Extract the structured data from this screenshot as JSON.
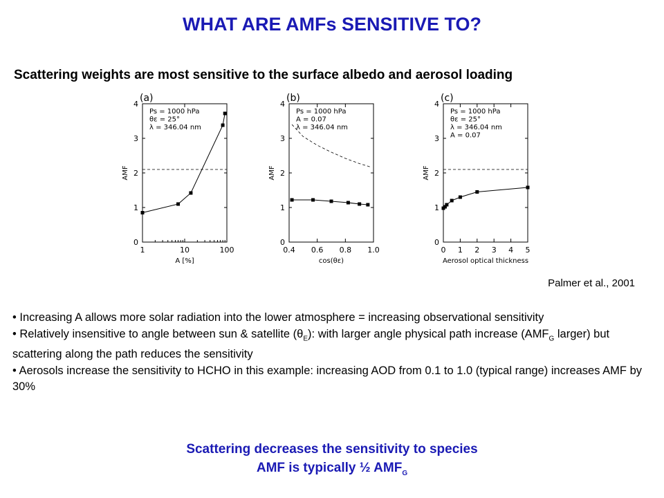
{
  "slide": {
    "title": "WHAT ARE AMFs SENSITIVE TO?",
    "subtitle": "Scattering weights are most sensitive to the surface albedo and aerosol loading",
    "citation": "Palmer et al., 2001",
    "bullets": [
      {
        "parts": [
          "• Increasing A allows more solar radiation into the lower atmosphere = increasing observational sensitivity"
        ]
      },
      {
        "parts": [
          "• Relatively insensitive to angle between sun & satellite (",
          "θ",
          "E",
          "): with larger angle physical path increase (AMF",
          "G",
          " larger) but scattering along the path reduces the sensitivity"
        ]
      },
      {
        "parts": [
          "• Aerosols increase the sensitivity to HCHO in this example: increasing AOD from 0.1 to 1.0 (typical range) increases AMF by 30%"
        ]
      }
    ],
    "conclusion": {
      "line1": "Scattering decreases the sensitivity to species",
      "line2_prefix": "AMF is typically ½ AMF",
      "line2_sub": "G"
    }
  },
  "chart_data": [
    {
      "type": "line",
      "panel_label": "(a)",
      "params": [
        "Ps = 1000 hPa",
        "θε = 25°",
        "λ = 346.04 nm"
      ],
      "xlabel": "A [%]",
      "ylabel": "AMF",
      "xscale": "log",
      "xlim": [
        1,
        100
      ],
      "ylim": [
        0,
        4
      ],
      "xticks": [
        "1",
        "10",
        "100"
      ],
      "xtick_values": [
        1,
        10,
        100
      ],
      "yticks": [
        "0",
        "1",
        "2",
        "3",
        "4"
      ],
      "series": [
        {
          "x": [
            1,
            7,
            14,
            80,
            90
          ],
          "y": [
            0.85,
            1.1,
            1.42,
            3.38,
            3.72
          ]
        }
      ],
      "reference_line": {
        "y": 2.1,
        "style": "dashed"
      }
    },
    {
      "type": "line",
      "panel_label": "(b)",
      "params": [
        "Ps = 1000 hPa",
        "A = 0.07",
        "λ = 346.04 nm"
      ],
      "xlabel": "cos(θε)",
      "ylabel": "AMF",
      "xscale": "linear",
      "xlim": [
        0.4,
        1.0
      ],
      "ylim": [
        0,
        4
      ],
      "xticks": [
        "0.4",
        "0.6",
        "0.8",
        "1.0"
      ],
      "xtick_values": [
        0.4,
        0.6,
        0.8,
        1.0
      ],
      "yticks": [
        "0",
        "1",
        "2",
        "3",
        "4"
      ],
      "series": [
        {
          "x": [
            0.42,
            0.57,
            0.7,
            0.82,
            0.9,
            0.96
          ],
          "y": [
            1.22,
            1.22,
            1.18,
            1.14,
            1.1,
            1.08
          ]
        }
      ],
      "reference_curve": {
        "x": [
          0.42,
          0.5,
          0.6,
          0.7,
          0.8,
          0.9,
          0.98
        ],
        "y": [
          3.4,
          3.05,
          2.8,
          2.6,
          2.42,
          2.27,
          2.17
        ],
        "style": "dashed"
      }
    },
    {
      "type": "line",
      "panel_label": "(c)",
      "params": [
        "Ps = 1000 hPa",
        "θε = 25°",
        "λ = 346.04 nm",
        "A = 0.07"
      ],
      "xlabel": "Aerosol optical thickness",
      "ylabel": "AMF",
      "xscale": "linear",
      "xlim": [
        0,
        5
      ],
      "ylim": [
        0,
        4
      ],
      "xticks": [
        "0",
        "1",
        "2",
        "3",
        "4",
        "5"
      ],
      "xtick_values": [
        0,
        1,
        2,
        3,
        4,
        5
      ],
      "yticks": [
        "0",
        "1",
        "2",
        "3",
        "4"
      ],
      "series": [
        {
          "x": [
            0.0,
            0.1,
            0.2,
            0.5,
            1.0,
            2.0,
            5.0
          ],
          "y": [
            0.98,
            1.02,
            1.08,
            1.2,
            1.3,
            1.45,
            1.58
          ]
        }
      ],
      "reference_line": {
        "y": 2.1,
        "style": "dashed"
      }
    }
  ]
}
